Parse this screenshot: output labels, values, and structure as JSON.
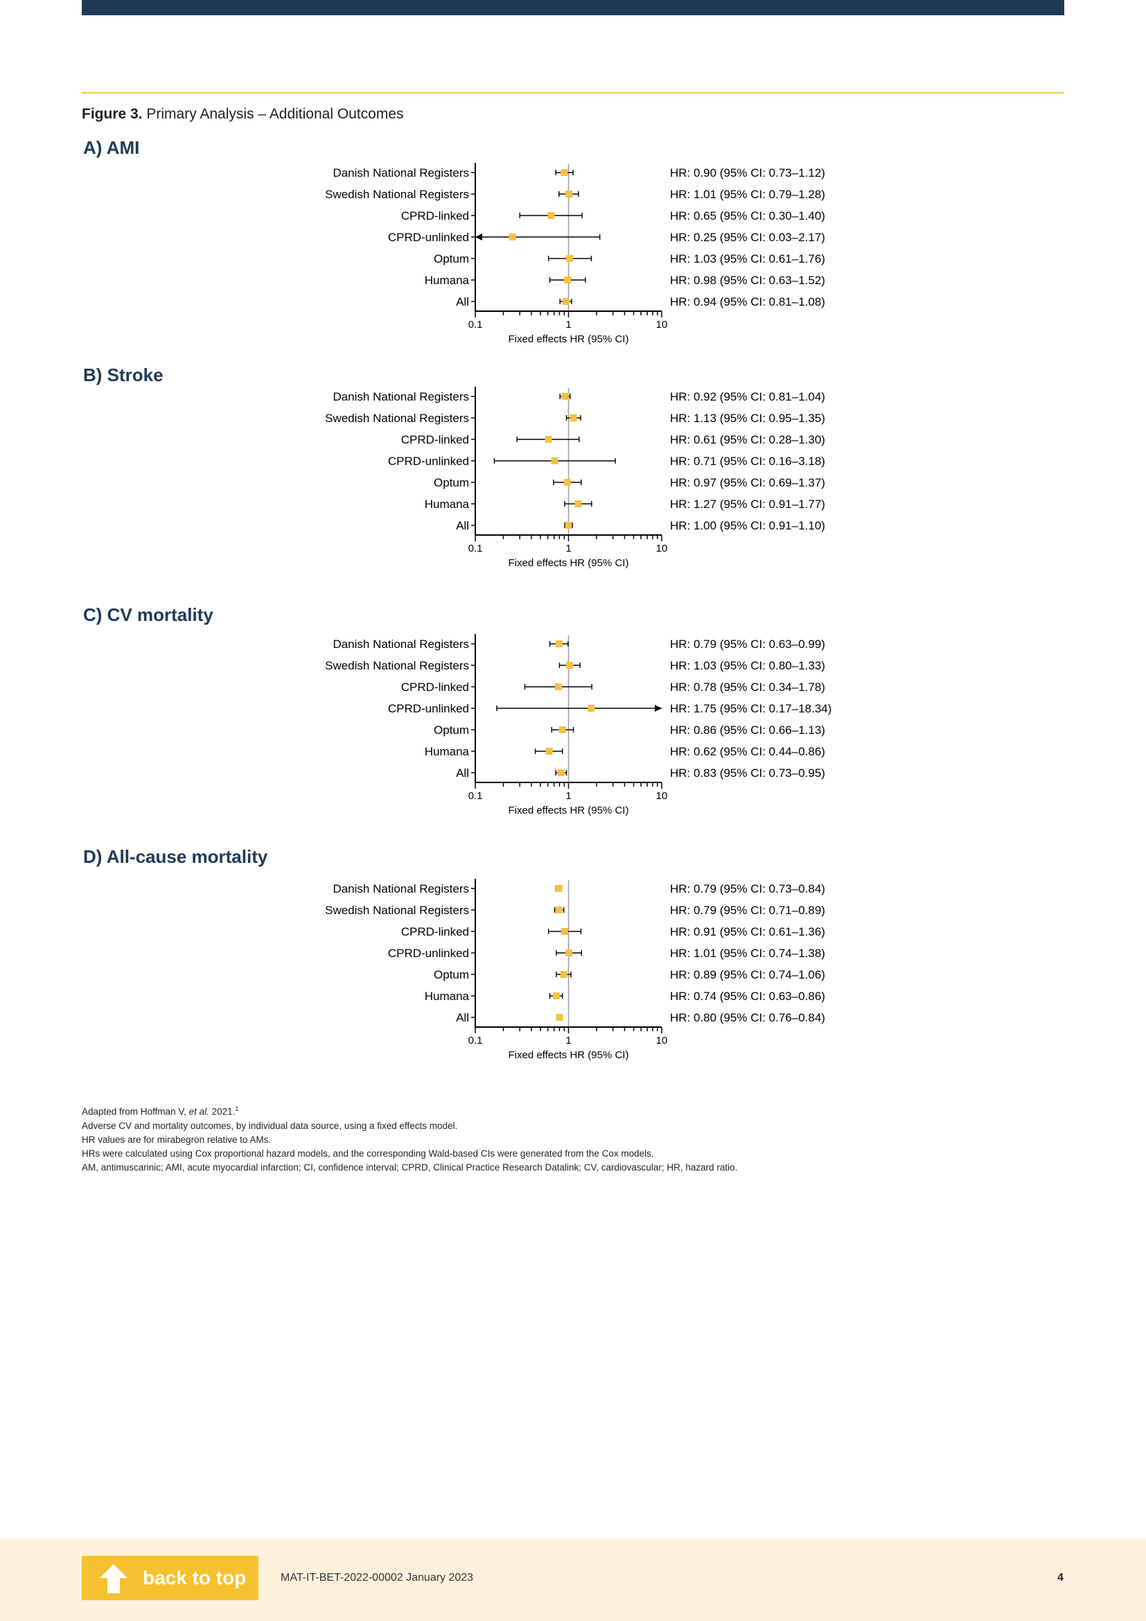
{
  "figure_title": {
    "label": "Figure 3.",
    "text": " Primary Analysis – Additional Outcomes"
  },
  "chart_data": [
    {
      "type": "forest",
      "panel": "A)",
      "title": "AMI",
      "xlabel": "Fixed effects HR (95% CI)",
      "xscale": "log",
      "xlim": [
        0.1,
        10
      ],
      "xticks": [
        "0.1",
        "1",
        "10"
      ],
      "reference_line": 1,
      "marker_color": "#f5c142",
      "categories": [
        "Danish National Registers",
        "Swedish National Registers",
        "CPRD-linked",
        "CPRD-unlinked",
        "Optum",
        "Humana",
        "All"
      ],
      "hr": [
        0.9,
        1.01,
        0.65,
        0.25,
        1.03,
        0.98,
        0.94
      ],
      "ci_low": [
        0.73,
        0.79,
        0.3,
        0.03,
        0.61,
        0.63,
        0.81
      ],
      "ci_high": [
        1.12,
        1.28,
        1.4,
        2.17,
        1.76,
        1.52,
        1.08
      ],
      "labels": [
        "HR: 0.90 (95% CI: 0.73–1.12)",
        "HR: 1.01 (95% CI: 0.79–1.28)",
        "HR: 0.65 (95% CI: 0.30–1.40)",
        "HR: 0.25 (95% CI: 0.03–2.17)",
        "HR: 1.03 (95% CI: 0.61–1.76)",
        "HR: 0.98 (95% CI: 0.63–1.52)",
        "HR: 0.94 (95% CI: 0.81–1.08)"
      ]
    },
    {
      "type": "forest",
      "panel": "B)",
      "title": "Stroke",
      "xlabel": "Fixed effects HR (95% CI)",
      "xscale": "log",
      "xlim": [
        0.1,
        10
      ],
      "xticks": [
        "0.1",
        "1",
        "10"
      ],
      "reference_line": 1,
      "marker_color": "#f5c142",
      "categories": [
        "Danish National Registers",
        "Swedish National Registers",
        "CPRD-linked",
        "CPRD-unlinked",
        "Optum",
        "Humana",
        "All"
      ],
      "hr": [
        0.92,
        1.13,
        0.61,
        0.71,
        0.97,
        1.27,
        1.0
      ],
      "ci_low": [
        0.81,
        0.95,
        0.28,
        0.16,
        0.69,
        0.91,
        0.91
      ],
      "ci_high": [
        1.04,
        1.35,
        1.3,
        3.18,
        1.37,
        1.77,
        1.1
      ],
      "labels": [
        "HR: 0.92 (95% CI: 0.81–1.04)",
        "HR: 1.13 (95% CI: 0.95–1.35)",
        "HR: 0.61 (95% CI: 0.28–1.30)",
        "HR: 0.71 (95% CI: 0.16–3.18)",
        "HR: 0.97 (95% CI: 0.69–1.37)",
        "HR: 1.27 (95% CI: 0.91–1.77)",
        "HR: 1.00 (95% CI: 0.91–1.10)"
      ]
    },
    {
      "type": "forest",
      "panel": "C)",
      "title": "CV mortality",
      "xlabel": "Fixed effects HR (95% CI)",
      "xscale": "log",
      "xlim": [
        0.1,
        10
      ],
      "xticks": [
        "0.1",
        "1",
        "10"
      ],
      "reference_line": 1,
      "marker_color": "#f5c142",
      "categories": [
        "Danish National Registers",
        "Swedish National Registers",
        "CPRD-linked",
        "CPRD-unlinked",
        "Optum",
        "Humana",
        "All"
      ],
      "hr": [
        0.79,
        1.03,
        0.78,
        1.75,
        0.86,
        0.62,
        0.83
      ],
      "ci_low": [
        0.63,
        0.8,
        0.34,
        0.17,
        0.66,
        0.44,
        0.73
      ],
      "ci_high": [
        0.99,
        1.33,
        1.78,
        18.34,
        1.13,
        0.86,
        0.95
      ],
      "labels": [
        "HR: 0.79 (95% CI: 0.63–0.99)",
        "HR: 1.03 (95% CI: 0.80–1.33)",
        "HR: 0.78 (95% CI: 0.34–1.78)",
        "HR: 1.75 (95% CI: 0.17–18.34)",
        "HR: 0.86 (95% CI: 0.66–1.13)",
        "HR: 0.62 (95% CI: 0.44–0.86)",
        "HR: 0.83 (95% CI: 0.73–0.95)"
      ]
    },
    {
      "type": "forest",
      "panel": "D)",
      "title": "All-cause mortality",
      "xlabel": "Fixed effects HR (95% CI)",
      "xscale": "log",
      "xlim": [
        0.1,
        10
      ],
      "xticks": [
        "0.1",
        "1",
        "10"
      ],
      "reference_line": 1,
      "marker_color": "#f5c142",
      "categories": [
        "Danish National Registers",
        "Swedish National Registers",
        "CPRD-linked",
        "CPRD-unlinked",
        "Optum",
        "Humana",
        "All"
      ],
      "hr": [
        0.79,
        0.79,
        0.91,
        1.01,
        0.89,
        0.74,
        0.8
      ],
      "ci_low": [
        0.73,
        0.71,
        0.61,
        0.74,
        0.74,
        0.63,
        0.76
      ],
      "ci_high": [
        0.84,
        0.89,
        1.36,
        1.38,
        1.06,
        0.86,
        0.84
      ],
      "labels": [
        "HR: 0.79 (95% CI: 0.73–0.84)",
        "HR: 0.79 (95% CI: 0.71–0.89)",
        "HR: 0.91 (95% CI: 0.61–1.36)",
        "HR: 1.01 (95% CI: 0.74–1.38)",
        "HR: 0.89 (95% CI: 0.74–1.06)",
        "HR: 0.74 (95% CI: 0.63–0.86)",
        "HR: 0.80 (95% CI: 0.76–0.84)"
      ]
    }
  ],
  "notes": {
    "line1_pre": "Adapted from Hoffman V, ",
    "line1_em": "et al.",
    "line1_post": " 2021.",
    "line1_sup": "1",
    "line2": "Adverse CV and mortality outcomes, by individual data source, using a fixed effects model.",
    "line3": "HR values are for mirabegron relative to AMs.",
    "line4": "HRs were calculated using Cox proportional hazard models, and the corresponding Wald-based CIs were generated from the Cox models.",
    "line5": "AM, antimuscarinic; AMI, acute myocardial infarction; CI, confidence interval; CPRD, Clinical Practice Research Datalink; CV, cardiovascular; HR, hazard ratio."
  },
  "footer": {
    "back_label": "back to top",
    "doc_code": "MAT-IT-BET-2022-00002 January 2023",
    "page_number": "4"
  },
  "colors": {
    "brand_navy": "#1f3a57",
    "accent_gold": "#f5c12e",
    "footer_bg": "#fdf1dc"
  }
}
